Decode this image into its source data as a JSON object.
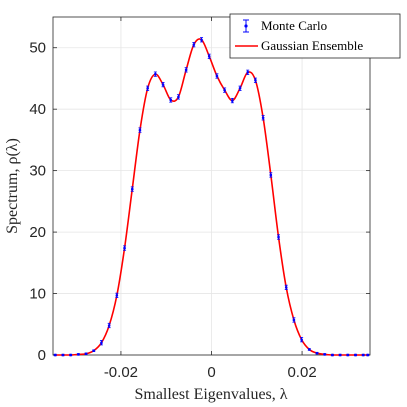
{
  "chart_data": {
    "type": "line",
    "xlabel": "Smallest Eigenvalues, λ",
    "ylabel": "Spectrum, ρ(λ)",
    "xlim": [
      -0.035,
      0.035
    ],
    "ylim": [
      0,
      55
    ],
    "x_ticks": [
      -0.02,
      0,
      0.02
    ],
    "x_tick_labels": [
      "-0.02",
      "0",
      "0.02"
    ],
    "y_ticks": [
      0,
      10,
      20,
      30,
      40,
      50
    ],
    "y_tick_labels": [
      "0",
      "10",
      "20",
      "30",
      "40",
      "50"
    ],
    "grid": true,
    "legend_position": "top-right",
    "series": [
      {
        "name": "Monte Carlo",
        "style": "errorbar-points",
        "color": "#0000ff",
        "x": [
          -0.0345,
          -0.0328,
          -0.0311,
          -0.0294,
          -0.0277,
          -0.026,
          -0.0243,
          -0.0226,
          -0.0209,
          -0.0192,
          -0.0175,
          -0.0158,
          -0.0141,
          -0.0124,
          -0.0107,
          -0.009,
          -0.0073,
          -0.0056,
          -0.0039,
          -0.0022,
          -0.0005,
          0.0012,
          0.0029,
          0.0046,
          0.0063,
          0.008,
          0.0097,
          0.0114,
          0.0131,
          0.0148,
          0.0165,
          0.0182,
          0.0199,
          0.0216,
          0.0233,
          0.025,
          0.0267,
          0.0284,
          0.0301,
          0.0318,
          0.0335,
          0.0345
        ],
        "y": [
          0,
          0,
          0,
          0.1,
          0.2,
          0.7,
          2.0,
          4.8,
          9.7,
          17.4,
          27.0,
          36.6,
          43.4,
          45.7,
          44.0,
          41.5,
          42.0,
          46.4,
          50.5,
          51.3,
          48.6,
          45.4,
          43.1,
          41.4,
          43.4,
          46.0,
          44.7,
          38.6,
          29.3,
          19.2,
          11.0,
          5.7,
          2.5,
          0.9,
          0.3,
          0.1,
          0,
          0,
          0,
          0,
          0,
          0
        ]
      },
      {
        "name": "Gaussian Ensemble",
        "style": "line",
        "color": "#ff0000"
      }
    ]
  }
}
